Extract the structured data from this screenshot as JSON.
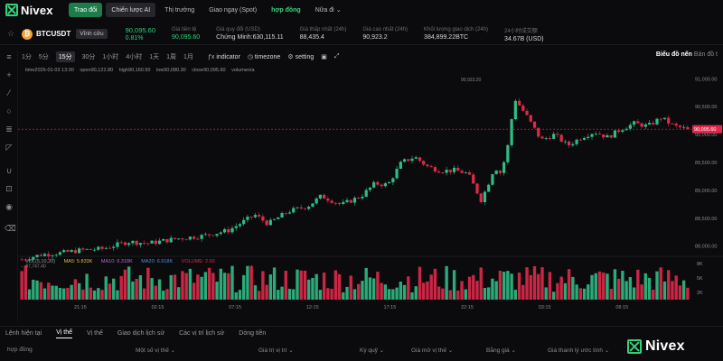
{
  "brand": "Nivex",
  "nav": {
    "items": [
      "Trao đổi",
      "Chiến lược AI",
      "Thị trường",
      "Giao ngay (Spot)",
      "hợp đồng",
      "Nữa đi"
    ],
    "nua_di_suffix": "⌄"
  },
  "ticker": {
    "symbol": "BTCUSDT",
    "contract": "Vĩnh cửu",
    "price": "90,095.60",
    "change_pct": "0.81%",
    "stats": [
      {
        "label": "Giá tiền tệ",
        "value": "90,095.60",
        "green": true
      },
      {
        "label": "Giá quy đổi (USD)",
        "value": "Chứng Minh:630,115.11",
        "green": false
      },
      {
        "label": "Giá thấp nhất (24h)",
        "value": "88,435.4",
        "green": false
      },
      {
        "label": "Giá cao nhất (24h)",
        "value": "90,923.2",
        "green": false
      },
      {
        "label": "Khối lượng giao dịch (24h)",
        "value": "384,899.22BTC",
        "green": false
      },
      {
        "label": "24小时成交额",
        "value": "34.67B (USD)",
        "green": false
      }
    ]
  },
  "toolbar": {
    "timeframes": [
      "1分",
      "5分",
      "15分",
      "30分",
      "1小时",
      "4小时",
      "1天",
      "1周",
      "1月"
    ],
    "active_tf": "15分",
    "indicator": "indicator",
    "timezone": "timezone",
    "setting": "setting",
    "view_on": "Biểu đồ nến",
    "view_off": "Bản đồ t"
  },
  "legend": {
    "time": "time2026-01-03 13:00",
    "open": "open90,122.80",
    "high": "high90,160.50",
    "low": "low90,080.30",
    "close": "close90,095.60",
    "volume": "volumen/a"
  },
  "vol_legend": {
    "vol": "VOL(5,10,20)",
    "ma5": "MA5: 5.833K",
    "ma10": "MA10: 6.318K",
    "ma20": "MA20: 6.918K",
    "volume": "VOLUME: 2.00"
  },
  "chart_data": {
    "type": "candlestick",
    "y_ticks": [
      "91,000.00",
      "90,500.00",
      "90,000.00",
      "89,500.00",
      "89,000.00",
      "88,500.00",
      "88,000.00"
    ],
    "y_range": [
      87850,
      91150
    ],
    "x_ticks": [
      "21:15",
      "02:15",
      "07:15",
      "12:15",
      "17:15",
      "22:15",
      "03:15",
      "08:15"
    ],
    "current_price": "90,095.60",
    "high_marker": "90,923.20",
    "low_marker": "87,747.40",
    "volume_ticks": [
      "8K",
      "5K",
      "2K"
    ],
    "colors": {
      "up": "#2ebd85",
      "down": "#e0294a",
      "current": "#e0294a"
    },
    "path": [
      [
        0,
        87760
      ],
      [
        0.03,
        87850
      ],
      [
        0.06,
        87880
      ],
      [
        0.09,
        87930
      ],
      [
        0.12,
        87950
      ],
      [
        0.16,
        88080
      ],
      [
        0.19,
        88050
      ],
      [
        0.23,
        88130
      ],
      [
        0.27,
        88180
      ],
      [
        0.31,
        88280
      ],
      [
        0.35,
        88560
      ],
      [
        0.37,
        88400
      ],
      [
        0.4,
        88620
      ],
      [
        0.43,
        88720
      ],
      [
        0.45,
        88900
      ],
      [
        0.48,
        88740
      ],
      [
        0.51,
        88900
      ],
      [
        0.53,
        89120
      ],
      [
        0.55,
        89100
      ],
      [
        0.57,
        89500
      ],
      [
        0.59,
        89600
      ],
      [
        0.61,
        89420
      ],
      [
        0.63,
        89350
      ],
      [
        0.65,
        89360
      ],
      [
        0.67,
        89300
      ],
      [
        0.69,
        88820
      ],
      [
        0.7,
        89100
      ],
      [
        0.71,
        89420
      ],
      [
        0.72,
        89300
      ],
      [
        0.73,
        89800
      ],
      [
        0.74,
        90650
      ],
      [
        0.76,
        90300
      ],
      [
        0.78,
        89900
      ],
      [
        0.8,
        90000
      ],
      [
        0.82,
        89800
      ],
      [
        0.84,
        89950
      ],
      [
        0.86,
        90050
      ],
      [
        0.88,
        89950
      ],
      [
        0.9,
        90100
      ],
      [
        0.92,
        90200
      ],
      [
        0.94,
        90150
      ],
      [
        0.96,
        90300
      ],
      [
        0.98,
        90150
      ],
      [
        1.0,
        90095
      ]
    ]
  },
  "bottom": {
    "tabs": [
      "Lệnh hiện tại",
      "Vị thế",
      "Vị thế",
      "Giao dịch lịch sử",
      "Các vị trí lịch sử",
      "Dòng tiền"
    ],
    "active_tab": 1,
    "headers": [
      "hợp đồng",
      "Một số vị thế ⌄",
      "Giá trị vị trí ⌄",
      "Ký quỹ ⌄",
      "Giá mở vị thế ⌄",
      "Bằng giá ⌄",
      "Giá thanh lý ước tính ⌄"
    ]
  }
}
